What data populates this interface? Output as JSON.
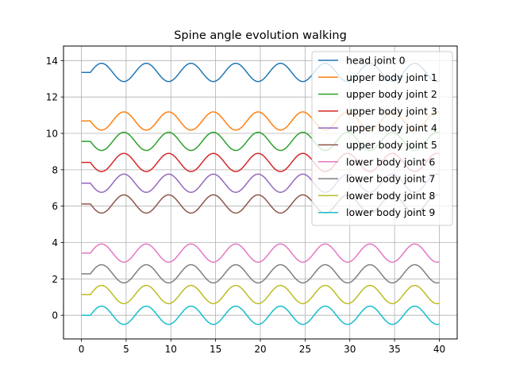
{
  "chart_data": {
    "type": "line",
    "title": "Spine angle evolution walking",
    "xlabel": "",
    "ylabel": "",
    "xlim": [
      -2,
      42
    ],
    "ylim": [
      -1.3,
      14.8
    ],
    "x_ticks": [
      0,
      5,
      10,
      15,
      20,
      25,
      30,
      35,
      40
    ],
    "y_ticks": [
      0,
      2,
      4,
      6,
      8,
      10,
      12,
      14
    ],
    "grid": true,
    "legend_position": "upper-right",
    "x_start": 0,
    "x_end": 40,
    "series": [
      {
        "name": "head joint 0",
        "color": "#1f77b4",
        "offset": 13.35,
        "amplitude": 0.5,
        "phase_sign": 1,
        "peak_first": true
      },
      {
        "name": "upper body joint 1",
        "color": "#ff7f0e",
        "offset": 10.68,
        "amplitude": 0.5,
        "phase_sign": 1,
        "peak_first": false
      },
      {
        "name": "upper body joint 2",
        "color": "#2ca02c",
        "offset": 9.56,
        "amplitude": 0.5,
        "phase_sign": 1,
        "peak_first": false
      },
      {
        "name": "upper body joint 3",
        "color": "#d62728",
        "offset": 8.4,
        "amplitude": 0.5,
        "phase_sign": 1,
        "peak_first": false
      },
      {
        "name": "upper body joint 4",
        "color": "#9467bd",
        "offset": 7.26,
        "amplitude": 0.5,
        "phase_sign": 1,
        "peak_first": false
      },
      {
        "name": "upper body joint 5",
        "color": "#8c564b",
        "offset": 6.12,
        "amplitude": 0.5,
        "phase_sign": 1,
        "peak_first": false
      },
      {
        "name": "lower body joint 6",
        "color": "#e377c2",
        "offset": 3.42,
        "amplitude": 0.5,
        "phase_sign": 1,
        "peak_first": true
      },
      {
        "name": "lower body joint 7",
        "color": "#7f7f7f",
        "offset": 2.28,
        "amplitude": 0.5,
        "phase_sign": 1,
        "peak_first": true
      },
      {
        "name": "lower body joint 8",
        "color": "#bcbd22",
        "offset": 1.14,
        "amplitude": 0.5,
        "phase_sign": 1,
        "peak_first": true
      },
      {
        "name": "lower body joint 9",
        "color": "#17becf",
        "offset": 0.0,
        "amplitude": 0.5,
        "phase_sign": 1,
        "peak_first": true
      }
    ],
    "period": 5.0,
    "flat_until": 1.0
  }
}
